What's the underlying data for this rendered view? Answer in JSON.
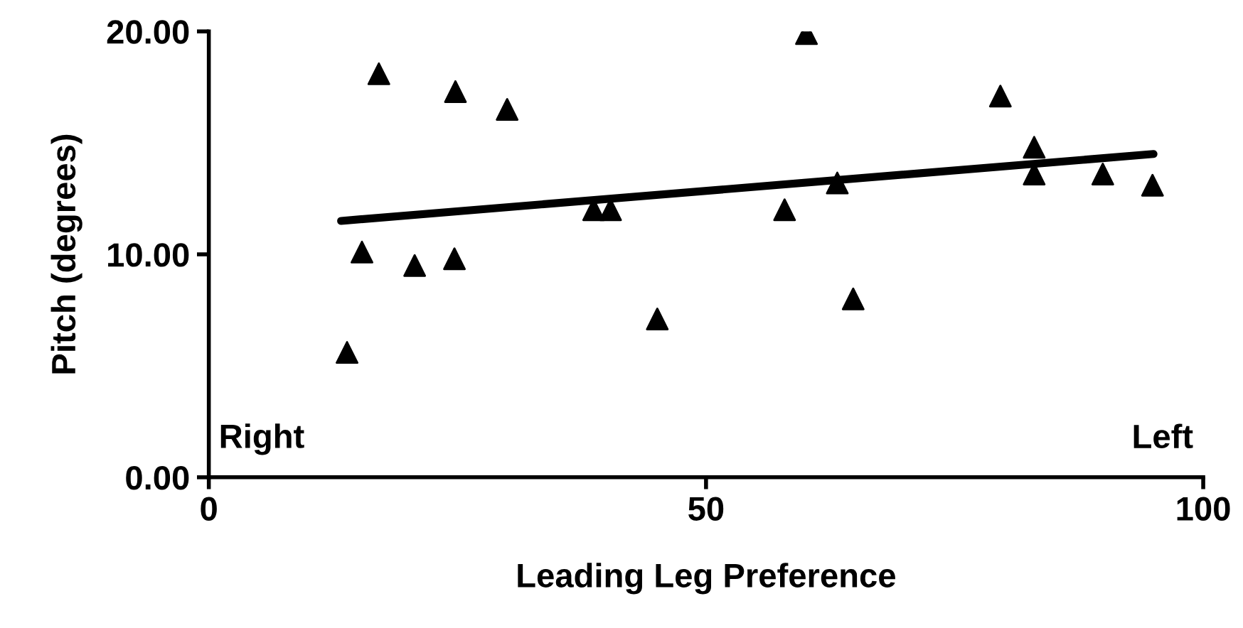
{
  "chart_data": {
    "type": "scatter",
    "xlabel": "Leading Leg Preference",
    "ylabel": "Pitch (degrees)",
    "xlim": [
      0,
      100
    ],
    "ylim": [
      0,
      20
    ],
    "xticks": [
      0,
      50,
      100
    ],
    "yticks": [
      {
        "value": 0,
        "label": "0.00"
      },
      {
        "value": 10,
        "label": "10.00"
      },
      {
        "value": 20,
        "label": "20.00"
      }
    ],
    "grid": false,
    "legend": false,
    "annotations": [
      "Right",
      "Left"
    ],
    "series": [
      {
        "marker": "triangle",
        "color": "#000000",
        "x": [
          13.9,
          15.4,
          17.1,
          20.7,
          24.8,
          24.7,
          30.0,
          38.7,
          40.4,
          45.1,
          57.9,
          60.1,
          63.2,
          64.8,
          79.6,
          83.0,
          83.0,
          89.9,
          94.9
        ],
        "values": [
          5.6,
          10.1,
          18.1,
          9.5,
          17.3,
          9.8,
          16.5,
          12.0,
          12.0,
          7.1,
          12.0,
          19.9,
          13.2,
          8.0,
          17.1,
          14.8,
          13.6,
          13.6,
          13.1
        ]
      },
      {
        "type": "line",
        "color": "#000000",
        "x": [
          13.3,
          95
        ],
        "values": [
          11.5,
          14.5
        ]
      }
    ]
  }
}
